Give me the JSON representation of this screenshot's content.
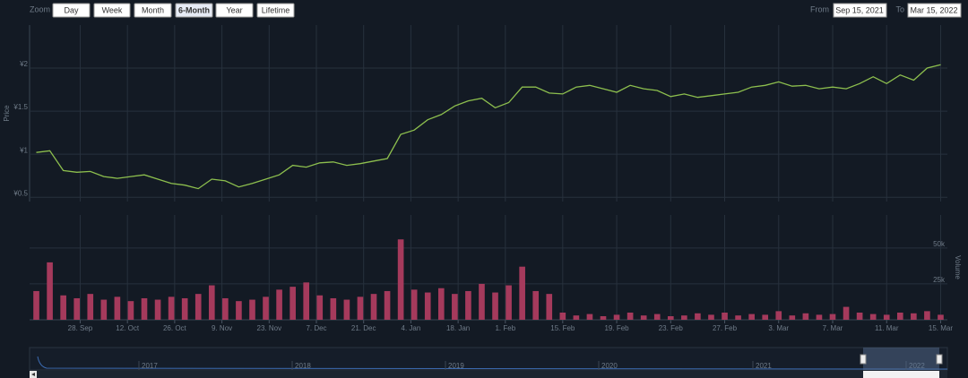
{
  "zoom": {
    "label": "Zoom",
    "buttons": [
      "Day",
      "Week",
      "Month",
      "6-Month",
      "Year",
      "Lifetime"
    ],
    "active": 3
  },
  "range": {
    "from_label": "From",
    "from": "Sep 15, 2021",
    "to_label": "To",
    "to": "Mar 15, 2022"
  },
  "navigator": {
    "years": [
      "2017",
      "2018",
      "2019",
      "2020",
      "2021",
      "2022"
    ]
  },
  "chart_data": [
    {
      "type": "line",
      "y_label": "Price",
      "color": "#8dbf4e",
      "grid": true,
      "x": [
        "2021-09-15",
        "2021-09-19",
        "2021-09-23",
        "2021-09-27",
        "2021-10-01",
        "2021-10-05",
        "2021-10-09",
        "2021-10-13",
        "2021-10-17",
        "2021-10-21",
        "2021-10-25",
        "2021-10-29",
        "2021-11-02",
        "2021-11-06",
        "2021-11-10",
        "2021-11-14",
        "2021-11-18",
        "2021-11-22",
        "2021-11-26",
        "2021-11-30",
        "2021-12-04",
        "2021-12-08",
        "2021-12-12",
        "2021-12-16",
        "2021-12-20",
        "2021-12-24",
        "2021-12-28",
        "2022-01-01",
        "2022-01-05",
        "2022-01-09",
        "2022-01-13",
        "2022-01-17",
        "2022-01-21",
        "2022-01-25",
        "2022-01-29",
        "2022-02-02",
        "2022-02-06",
        "2022-02-10",
        "2022-02-14",
        "2022-02-15",
        "2022-02-16",
        "2022-02-17",
        "2022-02-18",
        "2022-02-19",
        "2022-02-20",
        "2022-02-21",
        "2022-02-22",
        "2022-02-23",
        "2022-02-24",
        "2022-02-25",
        "2022-02-26",
        "2022-02-27",
        "2022-02-28",
        "2022-03-01",
        "2022-03-02",
        "2022-03-03",
        "2022-03-04",
        "2022-03-05",
        "2022-03-06",
        "2022-03-07",
        "2022-03-08",
        "2022-03-09",
        "2022-03-10",
        "2022-03-11",
        "2022-03-12",
        "2022-03-13",
        "2022-03-14",
        "2022-03-15"
      ],
      "values": [
        1.02,
        1.04,
        0.81,
        0.79,
        0.8,
        0.74,
        0.72,
        0.74,
        0.76,
        0.71,
        0.66,
        0.64,
        0.6,
        0.71,
        0.69,
        0.62,
        0.66,
        0.71,
        0.76,
        0.87,
        0.85,
        0.9,
        0.91,
        0.87,
        0.89,
        0.92,
        0.95,
        1.23,
        1.28,
        1.4,
        1.46,
        1.56,
        1.62,
        1.65,
        1.54,
        1.6,
        1.78,
        1.78,
        1.71,
        1.7,
        1.78,
        1.8,
        1.76,
        1.72,
        1.8,
        1.76,
        1.74,
        1.67,
        1.7,
        1.66,
        1.68,
        1.7,
        1.72,
        1.78,
        1.8,
        1.84,
        1.79,
        1.8,
        1.76,
        1.78,
        1.76,
        1.82,
        1.9,
        1.82,
        1.92,
        1.86,
        2.0,
        2.04
      ],
      "ylim": [
        0.45,
        2.5
      ],
      "yticks": [
        {
          "value": 0.5,
          "label": "¥0.5"
        },
        {
          "value": 1,
          "label": "¥1"
        },
        {
          "value": 1.5,
          "label": "¥1.5"
        },
        {
          "value": 2,
          "label": "¥2"
        }
      ]
    },
    {
      "type": "bar",
      "y_label": "Volume",
      "color": "#a53a5c",
      "grid": true,
      "x": [
        "2021-09-15",
        "2021-09-19",
        "2021-09-23",
        "2021-09-27",
        "2021-10-01",
        "2021-10-05",
        "2021-10-09",
        "2021-10-13",
        "2021-10-17",
        "2021-10-21",
        "2021-10-25",
        "2021-10-29",
        "2021-11-02",
        "2021-11-06",
        "2021-11-10",
        "2021-11-14",
        "2021-11-18",
        "2021-11-22",
        "2021-11-26",
        "2021-11-30",
        "2021-12-04",
        "2021-12-08",
        "2021-12-12",
        "2021-12-16",
        "2021-12-20",
        "2021-12-24",
        "2021-12-28",
        "2022-01-01",
        "2022-01-05",
        "2022-01-09",
        "2022-01-13",
        "2022-01-17",
        "2022-01-21",
        "2022-01-25",
        "2022-01-29",
        "2022-02-02",
        "2022-02-06",
        "2022-02-10",
        "2022-02-14",
        "2022-02-15",
        "2022-02-16",
        "2022-02-17",
        "2022-02-18",
        "2022-02-19",
        "2022-02-20",
        "2022-02-21",
        "2022-02-22",
        "2022-02-23",
        "2022-02-24",
        "2022-02-25",
        "2022-02-26",
        "2022-02-27",
        "2022-02-28",
        "2022-03-01",
        "2022-03-02",
        "2022-03-03",
        "2022-03-04",
        "2022-03-05",
        "2022-03-06",
        "2022-03-07",
        "2022-03-08",
        "2022-03-09",
        "2022-03-10",
        "2022-03-11",
        "2022-03-12",
        "2022-03-13",
        "2022-03-14",
        "2022-03-15"
      ],
      "values": [
        20000,
        40000,
        17000,
        15000,
        18000,
        14000,
        16000,
        13000,
        15000,
        14000,
        16000,
        15000,
        18000,
        24000,
        15000,
        13000,
        14000,
        16000,
        21000,
        23000,
        26000,
        17000,
        15000,
        14000,
        16000,
        18000,
        20000,
        56000,
        21000,
        19000,
        22000,
        18000,
        20000,
        25000,
        19000,
        24000,
        37000,
        20000,
        18000,
        5000,
        3000,
        4000,
        2500,
        3500,
        5000,
        3000,
        4000,
        2500,
        3000,
        4500,
        3500,
        5000,
        3000,
        4000,
        3500,
        6000,
        3000,
        4500,
        3500,
        4000,
        9000,
        5000,
        4000,
        3500,
        5000,
        4500,
        6000,
        3500
      ],
      "ylim": [
        0,
        73000
      ],
      "yticks": [
        {
          "value": 25000,
          "label": "25k"
        },
        {
          "value": 50000,
          "label": "50k"
        }
      ],
      "xticks": [
        {
          "value": "2021-09-28",
          "label": "28. Sep"
        },
        {
          "value": "2021-10-12",
          "label": "12. Oct"
        },
        {
          "value": "2021-10-26",
          "label": "26. Oct"
        },
        {
          "value": "2021-11-09",
          "label": "9. Nov"
        },
        {
          "value": "2021-11-23",
          "label": "23. Nov"
        },
        {
          "value": "2021-12-07",
          "label": "7. Dec"
        },
        {
          "value": "2021-12-21",
          "label": "21. Dec"
        },
        {
          "value": "2022-01-04",
          "label": "4. Jan"
        },
        {
          "value": "2022-01-18",
          "label": "18. Jan"
        },
        {
          "value": "2022-02-01",
          "label": "1. Feb"
        },
        {
          "value": "2022-02-15",
          "label": "15. Feb"
        },
        {
          "value": "2022-02-19",
          "label": "19. Feb"
        },
        {
          "value": "2022-02-23",
          "label": "23. Feb"
        },
        {
          "value": "2022-02-27",
          "label": "27. Feb"
        },
        {
          "value": "2022-03-03",
          "label": "3. Mar"
        },
        {
          "value": "2022-03-07",
          "label": "7. Mar"
        },
        {
          "value": "2022-03-11",
          "label": "11. Mar"
        },
        {
          "value": "2022-03-15",
          "label": "15. Mar"
        }
      ]
    }
  ]
}
